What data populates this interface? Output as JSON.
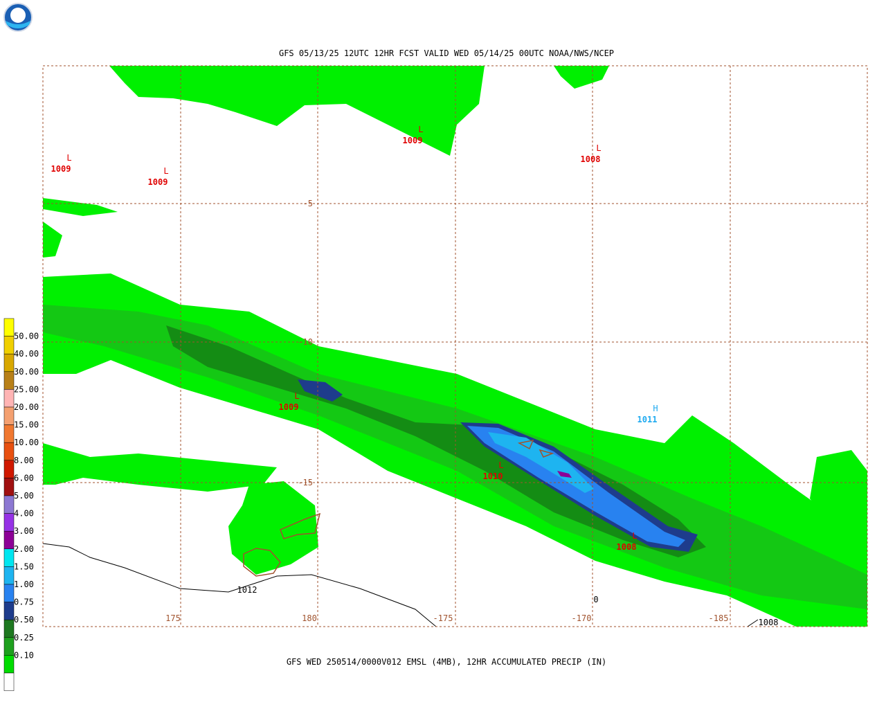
{
  "header": {
    "title": "GFS 05/13/25 12UTC 12HR FCST VALID WED 05/14/25 00UTC NOAA/NWS/NCEP"
  },
  "footer": {
    "caption": "GFS WED 250514/0000V012 EMSL (4MB), 12HR ACCUMULATED PRECIP (IN)"
  },
  "legend": {
    "colors": [
      "#ffff00",
      "#f0d000",
      "#d8a800",
      "#b88018",
      "#ffb4b4",
      "#f4a070",
      "#f07830",
      "#e85010",
      "#d01800",
      "#a01010",
      "#8c78d2",
      "#9632e6",
      "#8c0096",
      "#00e6f0",
      "#1eb4f0",
      "#2882f0",
      "#1e3c8c",
      "#1e7820",
      "#1ea01e",
      "#00dc00",
      "#ffffff"
    ],
    "labels": [
      "50.00",
      "40.00",
      "30.00",
      "25.00",
      "20.00",
      "15.00",
      "10.00",
      "8.00",
      "6.00",
      "5.00",
      "4.00",
      "3.00",
      "2.00",
      "1.50",
      "1.00",
      "0.75",
      "0.50",
      "0.25",
      "0.10"
    ]
  },
  "map": {
    "lat_labels": [
      "-5",
      "-10",
      "-15"
    ],
    "lon_labels": [
      "175",
      "180",
      "-175",
      "-170",
      "-185"
    ],
    "systems": [
      {
        "letter": "L",
        "pressure": "1009"
      },
      {
        "letter": "L",
        "pressure": "1009"
      },
      {
        "letter": "L",
        "pressure": "1009"
      },
      {
        "letter": "L",
        "pressure": "1008"
      },
      {
        "letter": "L",
        "pressure": "1009"
      },
      {
        "letter": "H",
        "pressure": "1011"
      },
      {
        "letter": "L",
        "pressure": "1010"
      },
      {
        "letter": "L",
        "pressure": "1008"
      }
    ],
    "contour_labels": [
      "1012",
      "0",
      "1008"
    ]
  }
}
